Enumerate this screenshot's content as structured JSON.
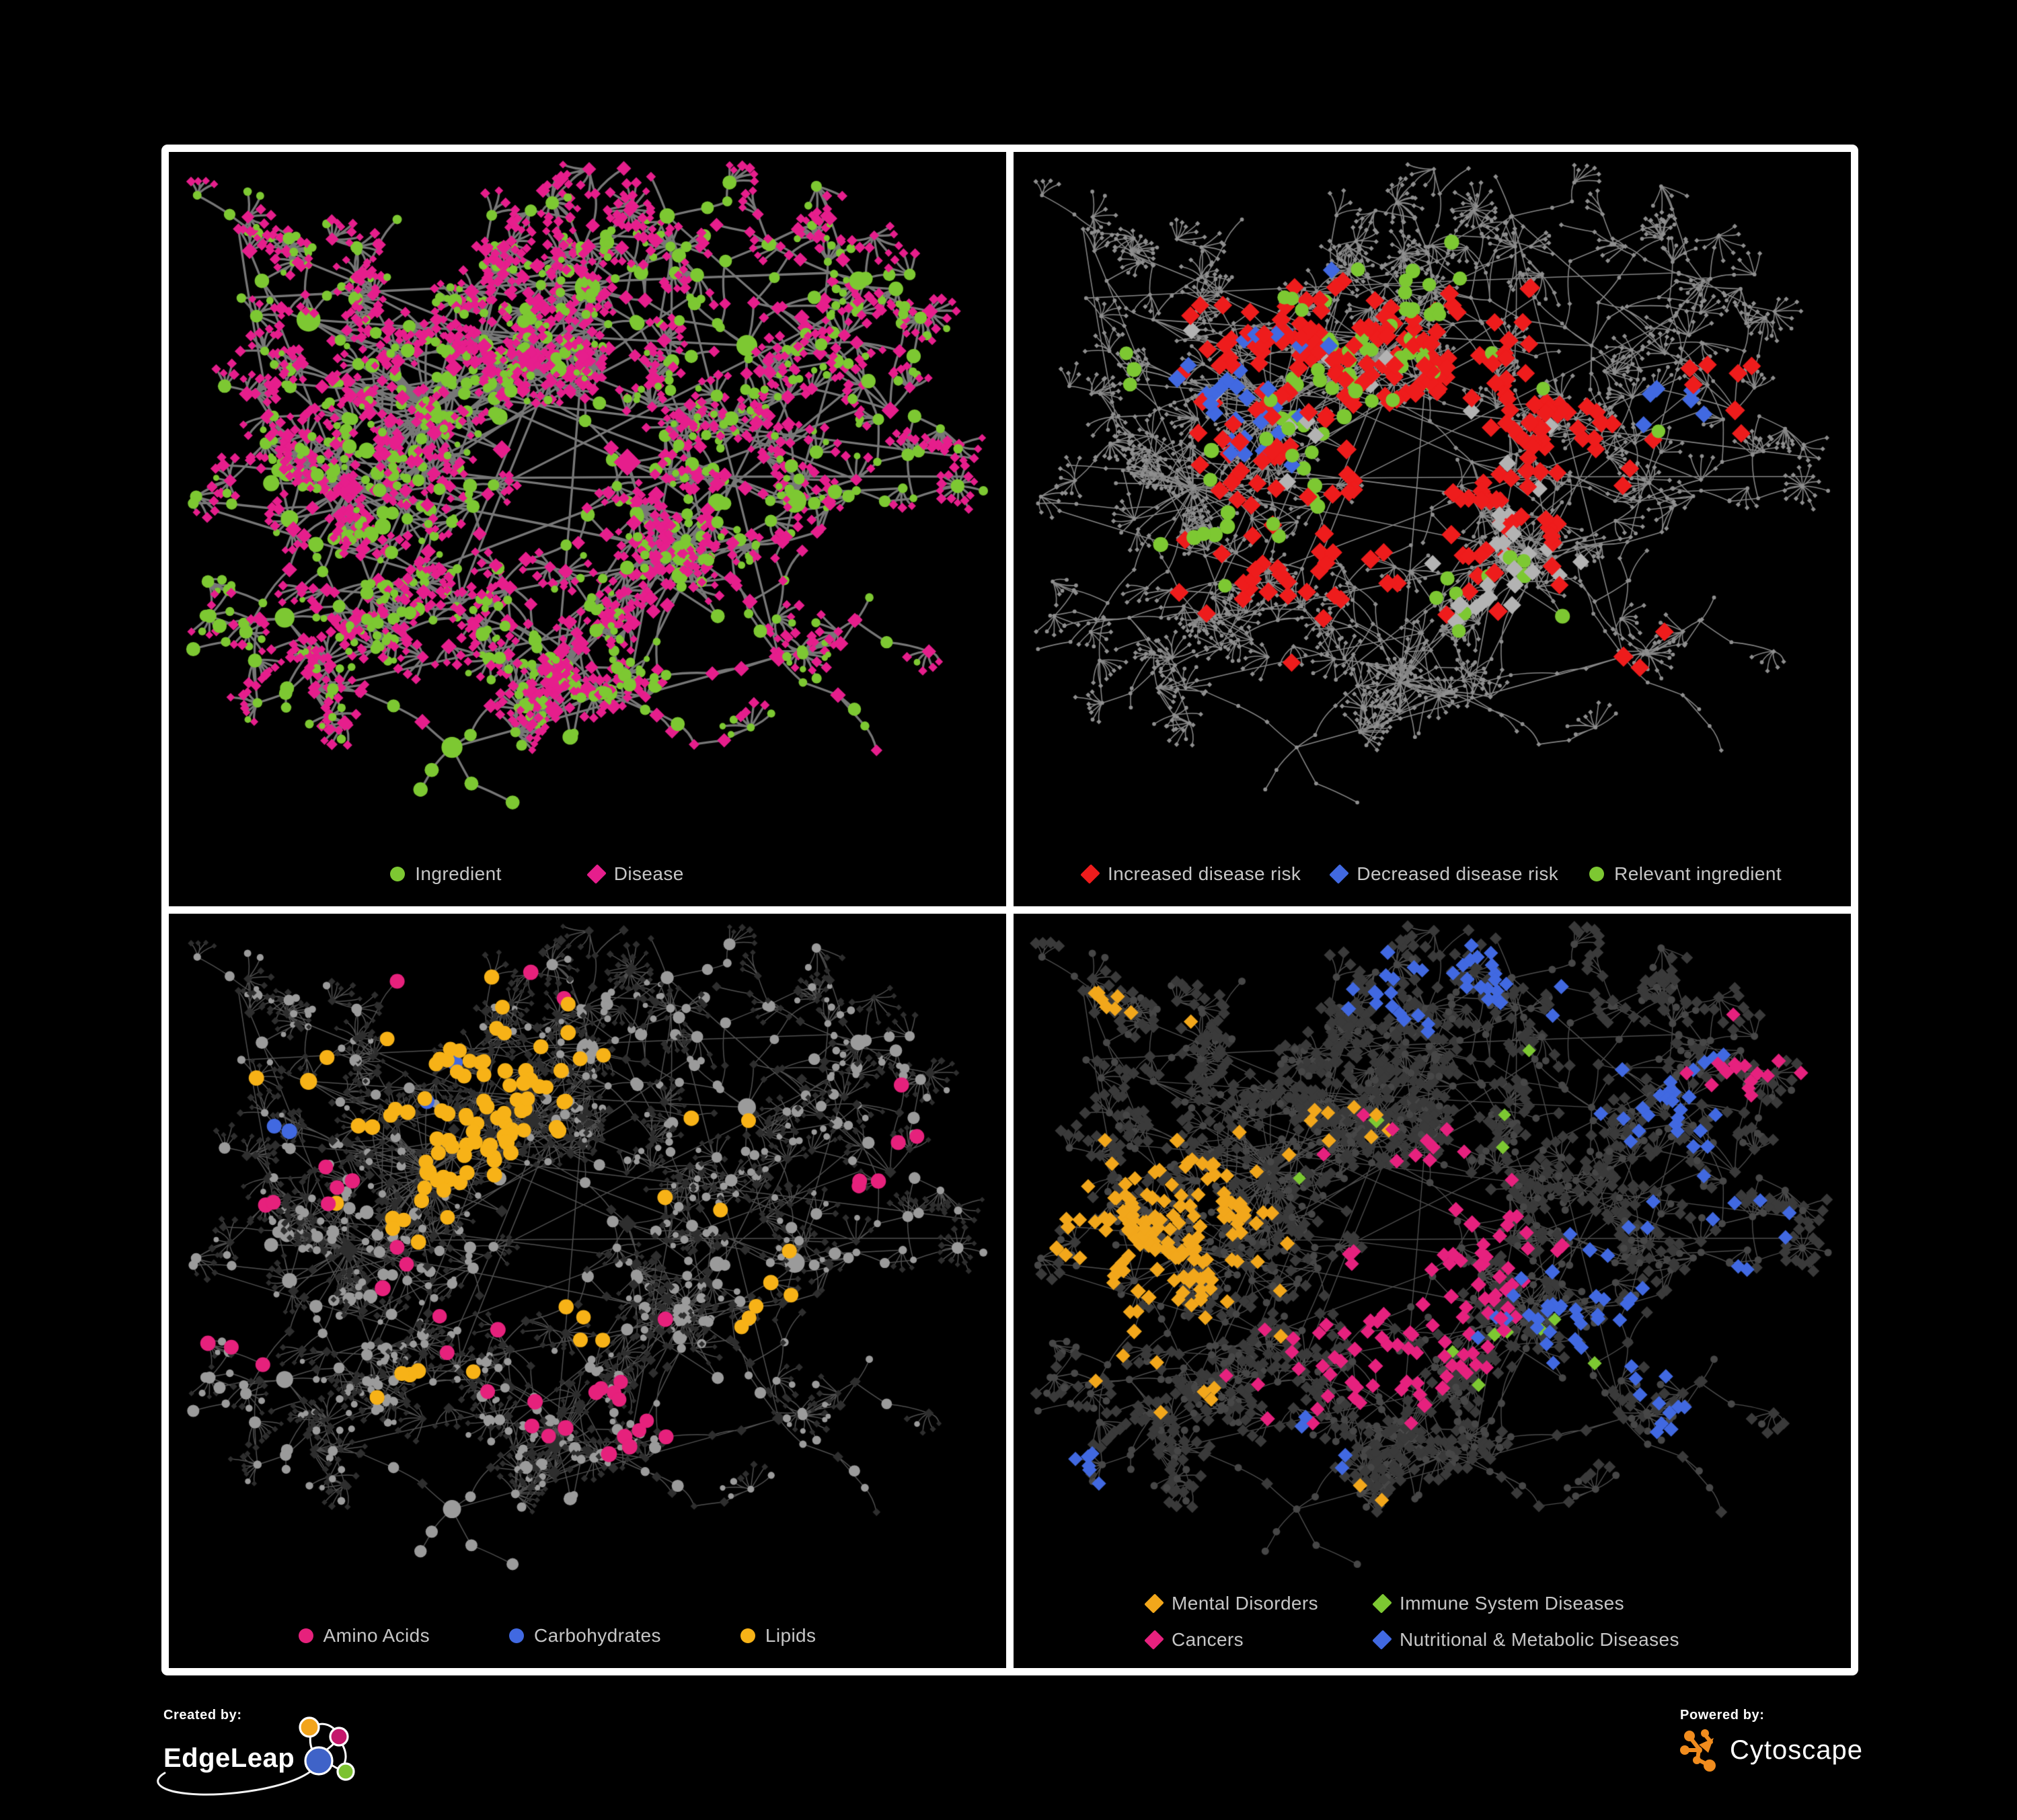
{
  "branding": {
    "created_by_label": "Created by:",
    "created_by_name": "EdgeLeap",
    "powered_by_label": "Powered by:",
    "powered_by_name": "Cytoscape"
  },
  "colors": {
    "background": "#000000",
    "frame": "#ffffff",
    "legend_text": "#c6c6c6",
    "green": "#7dc832",
    "magenta": "#e61e8c",
    "red": "#ee1c1c",
    "blue": "#4169e1",
    "orange": "#f5a91d",
    "gray_highlight": "#b3b3b3",
    "cytoscape_orange": "#f08c1e",
    "edgeleap_blue": "#3f63c8",
    "edgeleap_pink": "#c4176b",
    "edgeleap_green": "#7cc230",
    "edgeleap_orange": "#f2a41c"
  },
  "panels": [
    {
      "name": "ingredient-disease-network",
      "legend": [
        {
          "label": "Ingredient",
          "color": "#7dc832",
          "shape": "circle"
        },
        {
          "label": "Disease",
          "color": "#e61e8c",
          "shape": "diamond"
        }
      ],
      "style": {
        "mode": "typed",
        "edge": {
          "color": "rgba(125,125,125,0.95)",
          "width": 3.3
        },
        "circle": {
          "color": "#7dc832"
        },
        "diamond": {
          "color": "#e61e8c"
        }
      }
    },
    {
      "name": "disease-risk-network",
      "legend": [
        {
          "label": "Increased disease risk",
          "color": "#ee1c1c",
          "shape": "diamond"
        },
        {
          "label": "Decreased disease risk",
          "color": "#4169e1",
          "shape": "diamond"
        },
        {
          "label": "Relevant ingredient",
          "color": "#7dc832",
          "shape": "circle"
        }
      ],
      "style": {
        "mode": "dim",
        "edge": {
          "color": "rgba(140,140,140,0.95)",
          "width": 1.6
        },
        "base": {
          "color": "#8f8f8f",
          "size": 2.9
        },
        "highlights": [
          {
            "color": "#ee1c1c",
            "shape": "d",
            "size": 13,
            "zones": [
              [
                0.4,
                0.36,
                0.1,
                0.5
              ],
              [
                0.52,
                0.52,
                0.08,
                0.5
              ],
              [
                0.34,
                0.58,
                0.08,
                0.45
              ],
              [
                0.56,
                0.27,
                0.05,
                0.45
              ],
              [
                0.66,
                0.42,
                0.05,
                0.5
              ],
              [
                0.3,
                0.24,
                0.04,
                0.45
              ],
              [
                0.76,
                0.82,
                0.04,
                0.7
              ],
              [
                0.83,
                0.88,
                0.04,
                0.6
              ],
              [
                0.88,
                0.36,
                0.03,
                0.4
              ],
              [
                0.45,
                0.44,
                0.07,
                0.4
              ]
            ]
          },
          {
            "color": "#4169e1",
            "shape": "d",
            "size": 12,
            "zones": [
              [
                0.27,
                0.37,
                0.05,
                0.5
              ],
              [
                0.3,
                0.3,
                0.04,
                0.4
              ],
              [
                0.82,
                0.37,
                0.03,
                0.95
              ]
            ]
          },
          {
            "color": "#b3b3b3",
            "shape": "d",
            "size": 12,
            "zones": [
              [
                0.43,
                0.47,
                0.1,
                0.14
              ],
              [
                0.6,
                0.62,
                0.07,
                0.28
              ],
              [
                0.24,
                0.33,
                0.05,
                0.22
              ],
              [
                0.55,
                0.42,
                0.05,
                0.18
              ]
            ]
          },
          {
            "color": "#7dc832",
            "shape": "c",
            "size": 9.5,
            "zones": [
              [
                0.4,
                0.34,
                0.09,
                0.55
              ],
              [
                0.35,
                0.47,
                0.07,
                0.45
              ],
              [
                0.57,
                0.66,
                0.045,
                0.9
              ],
              [
                0.23,
                0.56,
                0.04,
                0.5
              ],
              [
                0.13,
                0.3,
                0.03,
                0.6
              ],
              [
                0.79,
                0.39,
                0.022,
                0.95
              ],
              [
                0.48,
                0.22,
                0.05,
                0.35
              ]
            ]
          }
        ]
      }
    },
    {
      "name": "ingredient-classes-network",
      "legend": [
        {
          "label": "Amino Acids",
          "color": "#e6217c",
          "shape": "circle"
        },
        {
          "label": "Carbohydrates",
          "color": "#4169e1",
          "shape": "circle"
        },
        {
          "label": "Lipids",
          "color": "#f7b217",
          "shape": "circle"
        }
      ],
      "style": {
        "mode": "classes",
        "edge": {
          "color": "rgba(160,160,160,0.5)",
          "width": 1.5
        },
        "diamond": {
          "color": "#2e2e2e"
        },
        "circleBase": {
          "color": "#9b9b9b"
        },
        "highlights": [
          {
            "color": "#f7b217",
            "shape": "c",
            "size": 10,
            "zones": [
              [
                0.4,
                0.24,
                0.07,
                0.9
              ],
              [
                0.33,
                0.39,
                0.07,
                0.55
              ],
              [
                0.29,
                0.33,
                0.06,
                0.45
              ],
              [
                0.47,
                0.61,
                0.035,
                0.95
              ],
              [
                0.57,
                0.47,
                0.05,
                0.3
              ],
              [
                0.75,
                0.6,
                0.05,
                0.4
              ],
              [
                0.27,
                0.69,
                0.04,
                0.35
              ],
              [
                0.14,
                0.22,
                0.04,
                0.3
              ],
              [
                0.7,
                0.28,
                0.04,
                0.25
              ],
              [
                0.36,
                0.06,
                0.03,
                0.5
              ]
            ]
          },
          {
            "color": "#4169e1",
            "shape": "c",
            "size": 10,
            "zones": [
              [
                0.355,
                0.215,
                0.045,
                0.55
              ],
              [
                0.3,
                0.17,
                0.035,
                0.45
              ],
              [
                0.78,
                0.66,
                0.025,
                0.6
              ],
              [
                0.115,
                0.33,
                0.02,
                0.7
              ],
              [
                0.42,
                0.33,
                0.03,
                0.3
              ]
            ]
          },
          {
            "color": "#e6217c",
            "shape": "c",
            "size": 10,
            "zones": [
              [
                0.13,
                0.37,
                0.05,
                0.45
              ],
              [
                0.26,
                0.08,
                0.03,
                0.6
              ],
              [
                0.5,
                0.73,
                0.05,
                0.45
              ],
              [
                0.37,
                0.63,
                0.04,
                0.45
              ],
              [
                0.6,
                0.8,
                0.05,
                0.45
              ],
              [
                0.42,
                0.04,
                0.03,
                0.6
              ],
              [
                0.1,
                0.66,
                0.04,
                0.35
              ],
              [
                0.87,
                0.37,
                0.04,
                0.55
              ],
              [
                0.56,
                0.57,
                0.03,
                0.35
              ],
              [
                0.25,
                0.53,
                0.03,
                0.3
              ]
            ]
          }
        ]
      }
    },
    {
      "name": "disease-categories-network",
      "legend": [
        {
          "label": "Mental Disorders",
          "color": "#f2a71b",
          "shape": "diamond"
        },
        {
          "label": "Immune System Diseases",
          "color": "#7dc832",
          "shape": "diamond"
        },
        {
          "label": "Cancers",
          "color": "#e6217e",
          "shape": "diamond"
        },
        {
          "label": "Nutritional & Metabolic Diseases",
          "color": "#4169e1",
          "shape": "diamond"
        }
      ],
      "style": {
        "mode": "categories",
        "edge": {
          "color": "rgba(170,170,170,0.45)",
          "width": 1.4
        },
        "diamond": {
          "color": "#3a3a3a",
          "size": 9
        },
        "circle": {
          "color": "#474747",
          "size": 5.5
        },
        "highlights": [
          {
            "color": "#f2a71b",
            "shape": "d",
            "size": 10,
            "zones": [
              [
                0.13,
                0.52,
                0.085,
                1.0
              ],
              [
                0.21,
                0.43,
                0.05,
                0.55
              ],
              [
                0.12,
                0.13,
                0.04,
                0.5
              ],
              [
                0.3,
                0.08,
                0.03,
                0.45
              ],
              [
                0.45,
                0.94,
                0.03,
                0.35
              ],
              [
                0.23,
                0.99,
                0.03,
                0.4
              ],
              [
                0.36,
                0.33,
                0.04,
                0.18
              ]
            ]
          },
          {
            "color": "#e6217e",
            "shape": "d",
            "size": 10,
            "zones": [
              [
                0.47,
                0.58,
                0.075,
                0.8
              ],
              [
                0.55,
                0.48,
                0.05,
                0.45
              ],
              [
                0.41,
                0.69,
                0.05,
                0.45
              ],
              [
                0.9,
                0.21,
                0.04,
                0.7
              ],
              [
                0.3,
                0.8,
                0.02,
                0.5
              ],
              [
                0.63,
                1.0,
                0.025,
                0.5
              ],
              [
                0.5,
                0.36,
                0.04,
                0.3
              ]
            ]
          },
          {
            "color": "#4169e1",
            "shape": "d",
            "size": 10,
            "zones": [
              [
                0.7,
                0.6,
                0.055,
                0.85
              ],
              [
                0.82,
                0.29,
                0.05,
                0.55
              ],
              [
                0.6,
                0.08,
                0.05,
                0.5
              ],
              [
                0.88,
                0.5,
                0.04,
                0.55
              ],
              [
                0.35,
                0.84,
                0.04,
                0.45
              ],
              [
                0.5,
                1.05,
                0.03,
                0.45
              ],
              [
                0.78,
                0.77,
                0.04,
                0.55
              ],
              [
                0.08,
                0.84,
                0.03,
                0.45
              ],
              [
                0.92,
                0.66,
                0.03,
                0.5
              ],
              [
                0.45,
                0.11,
                0.035,
                0.35
              ]
            ]
          },
          {
            "color": "#7dc832",
            "shape": "d",
            "size": 9,
            "zones": [
              [
                0.52,
                0.48,
                0.09,
                0.07
              ],
              [
                0.62,
                0.68,
                0.05,
                0.14
              ],
              [
                0.55,
                0.31,
                0.05,
                0.09
              ],
              [
                0.38,
                0.57,
                0.04,
                0.09
              ]
            ]
          }
        ]
      }
    }
  ],
  "network": {
    "seed": 1337,
    "extra_edges": 26,
    "hubs": [
      [
        0.3,
        0.38,
        1.6
      ],
      [
        0.43,
        0.3,
        1.5
      ],
      [
        0.5,
        0.19,
        1.15
      ],
      [
        0.2,
        0.5,
        1.35
      ],
      [
        0.46,
        0.8,
        1.3
      ],
      [
        0.62,
        0.6,
        1.25
      ],
      [
        0.7,
        0.28,
        1.0
      ],
      [
        0.55,
        0.46,
        1.1
      ],
      [
        0.15,
        0.24,
        0.95
      ],
      [
        0.84,
        0.18,
        0.85
      ],
      [
        0.76,
        0.52,
        1.0
      ],
      [
        0.33,
        0.9,
        0.85
      ],
      [
        0.74,
        0.76,
        0.9
      ],
      [
        0.6,
        0.08,
        0.7
      ],
      [
        0.12,
        0.7,
        0.85
      ],
      [
        0.88,
        0.38,
        0.7
      ]
    ]
  }
}
